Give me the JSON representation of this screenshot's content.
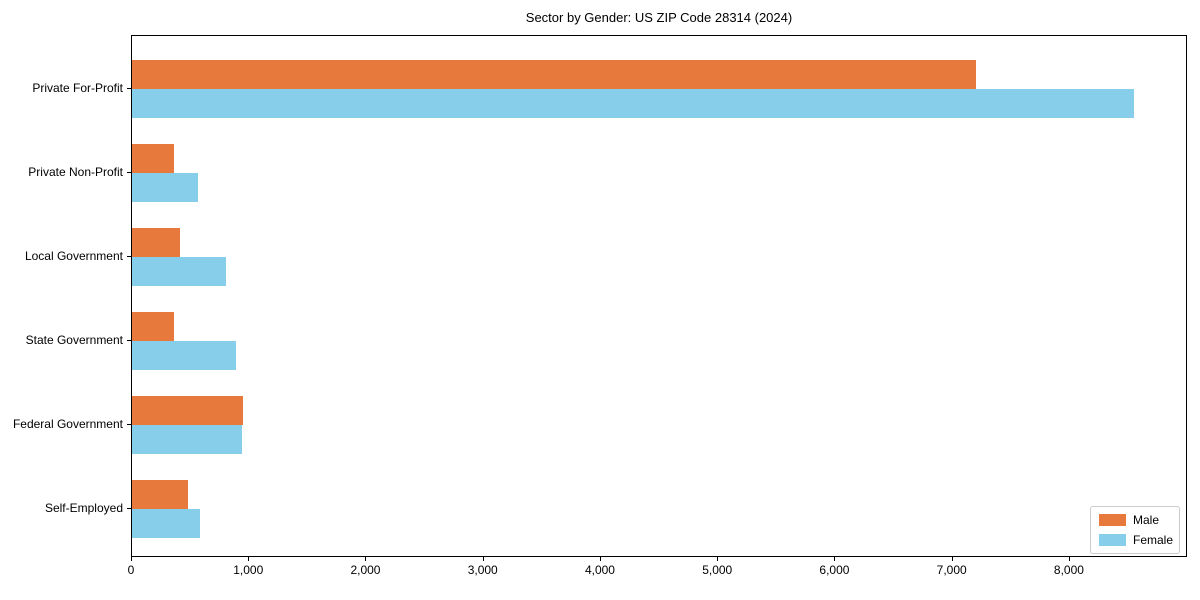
{
  "figure": {
    "title": "Sector by Gender: US ZIP Code 28314 (2024)"
  },
  "chart_data": {
    "type": "bar",
    "orientation": "horizontal",
    "title": "Sector by Gender: US ZIP Code 28314 (2024)",
    "categories": [
      "Private For-Profit",
      "Private Non-Profit",
      "Local Government",
      "State Government",
      "Federal Government",
      "Self-Employed"
    ],
    "series": [
      {
        "name": "Male",
        "color": "#e8793d",
        "values": [
          7200,
          360,
          410,
          355,
          950,
          475
        ]
      },
      {
        "name": "Female",
        "color": "#87ceeb",
        "values": [
          8550,
          560,
          800,
          885,
          940,
          580
        ]
      }
    ],
    "xlabel": "",
    "ylabel": "",
    "xlim": [
      0,
      8990
    ],
    "x_ticks": [
      0,
      1000,
      2000,
      3000,
      4000,
      5000,
      6000,
      7000,
      8000
    ],
    "x_tick_labels": [
      "0",
      "1,000",
      "2,000",
      "3,000",
      "4,000",
      "5,000",
      "6,000",
      "7,000",
      "8,000"
    ],
    "legend": {
      "position": "lower right",
      "entries": [
        "Male",
        "Female"
      ]
    },
    "grid": false,
    "colors": {
      "male": "#e8793d",
      "female": "#87ceeb",
      "spine": "#000000",
      "legend_border": "#cccccc"
    }
  }
}
